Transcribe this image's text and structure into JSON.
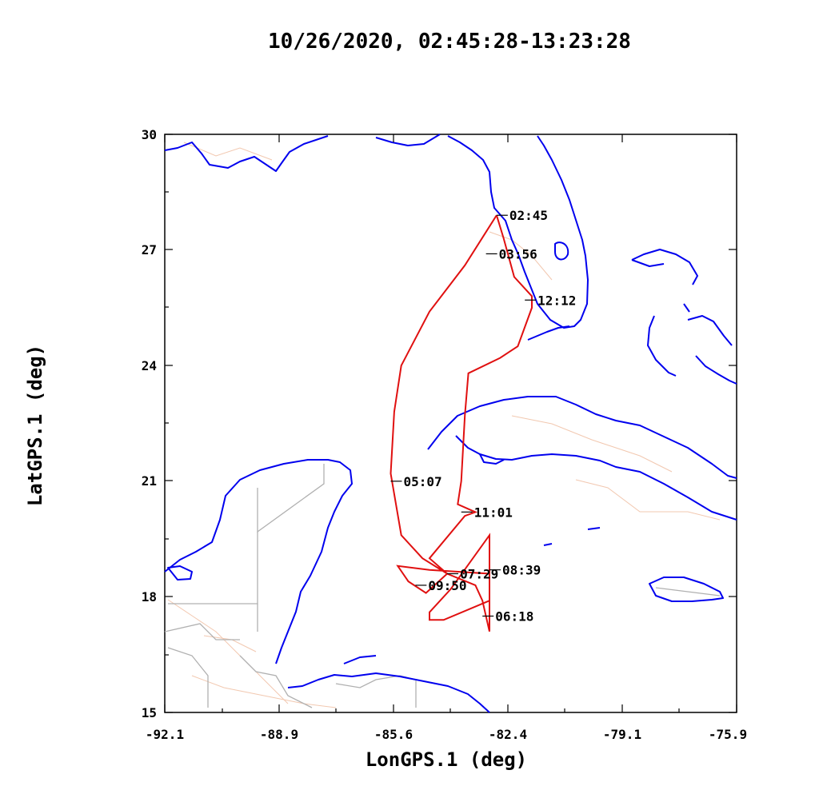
{
  "title": "10/26/2020, 02:45:28-13:23:28",
  "x_axis_label": "LonGPS.1 (deg)",
  "y_axis_label": "LatGPS.1 (deg)",
  "x_ticks": [
    "-92.1",
    "-88.9",
    "-85.6",
    "-82.4",
    "-79.1",
    "-75.9"
  ],
  "y_ticks": [
    "15",
    "18",
    "21",
    "24",
    "27",
    "30"
  ],
  "colors": {
    "track": "#e01010",
    "coastline": "#0000ee",
    "borders": "#b0b0b0",
    "rivers": "#f2c8b0"
  },
  "chart_data": {
    "type": "line",
    "title": "10/26/2020, 02:45:28-13:23:28",
    "xlabel": "LonGPS.1 (deg)",
    "ylabel": "LatGPS.1 (deg)",
    "xlim": [
      -92.1,
      -75.9
    ],
    "ylim": [
      15,
      30
    ],
    "series": [
      {
        "points": [
          {
            "lon": -82.7,
            "lat": 27.9
          },
          {
            "lon": -83.6,
            "lat": 26.6
          },
          {
            "lon": -84.6,
            "lat": 25.4
          },
          {
            "lon": -85.4,
            "lat": 24.0
          },
          {
            "lon": -85.6,
            "lat": 22.8
          },
          {
            "lon": -85.7,
            "lat": 21.2
          },
          {
            "lon": -85.4,
            "lat": 19.6
          },
          {
            "lon": -84.8,
            "lat": 19.0
          },
          {
            "lon": -84.1,
            "lat": 18.6
          },
          {
            "lon": -83.3,
            "lat": 18.3
          },
          {
            "lon": -83.1,
            "lat": 17.9
          },
          {
            "lon": -82.9,
            "lat": 17.1
          },
          {
            "lon": -82.9,
            "lat": 19.6
          },
          {
            "lon": -84.0,
            "lat": 18.2
          },
          {
            "lon": -84.6,
            "lat": 17.6
          },
          {
            "lon": -84.6,
            "lat": 17.4
          },
          {
            "lon": -84.2,
            "lat": 17.4
          },
          {
            "lon": -82.9,
            "lat": 17.9
          },
          {
            "lon": -82.9,
            "lat": 18.6
          },
          {
            "lon": -84.6,
            "lat": 18.7
          },
          {
            "lon": -85.5,
            "lat": 18.8
          },
          {
            "lon": -85.2,
            "lat": 18.4
          },
          {
            "lon": -84.7,
            "lat": 18.1
          },
          {
            "lon": -84.1,
            "lat": 18.6
          },
          {
            "lon": -84.6,
            "lat": 19.0
          },
          {
            "lon": -83.6,
            "lat": 20.1
          },
          {
            "lon": -83.3,
            "lat": 20.2
          },
          {
            "lon": -83.8,
            "lat": 20.4
          },
          {
            "lon": -83.7,
            "lat": 21.0
          },
          {
            "lon": -83.6,
            "lat": 22.7
          },
          {
            "lon": -83.5,
            "lat": 23.8
          },
          {
            "lon": -82.6,
            "lat": 24.2
          },
          {
            "lon": -82.1,
            "lat": 24.5
          },
          {
            "lon": -81.7,
            "lat": 25.5
          },
          {
            "lon": -81.7,
            "lat": 25.8
          },
          {
            "lon": -82.2,
            "lat": 26.3
          },
          {
            "lon": -82.5,
            "lat": 27.3
          },
          {
            "lon": -82.7,
            "lat": 27.9
          }
        ]
      }
    ],
    "annotations": [
      {
        "text": "02:45",
        "lon": -82.7,
        "lat": 27.9
      },
      {
        "text": "03:56",
        "lon": -83.0,
        "lat": 26.9
      },
      {
        "text": "12:12",
        "lon": -81.9,
        "lat": 25.7
      },
      {
        "text": "05:07",
        "lon": -85.7,
        "lat": 21.0
      },
      {
        "text": "11:01",
        "lon": -83.7,
        "lat": 20.2
      },
      {
        "text": "08:39",
        "lon": -82.9,
        "lat": 18.7
      },
      {
        "text": "07:29",
        "lon": -84.1,
        "lat": 18.6
      },
      {
        "text": "09:50",
        "lon": -85.0,
        "lat": 18.3
      },
      {
        "text": "06:18",
        "lon": -83.1,
        "lat": 17.5
      }
    ]
  }
}
